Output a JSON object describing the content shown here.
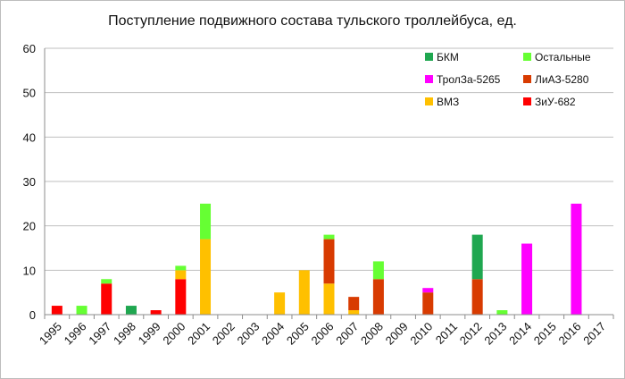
{
  "chart_data": {
    "type": "bar",
    "stacked": true,
    "title": "Поступление подвижного состава тульского троллейбуса, ед.",
    "xlabel": "",
    "ylabel": "",
    "ylim": [
      0,
      60
    ],
    "yticks": [
      0,
      10,
      20,
      30,
      40,
      50,
      60
    ],
    "grid": true,
    "legend_position": "top-right",
    "categories": [
      "1995",
      "1996",
      "1997",
      "1998",
      "1999",
      "2000",
      "2001",
      "2002",
      "2003",
      "2004",
      "2005",
      "2006",
      "2007",
      "2008",
      "2009",
      "2010",
      "2011",
      "2012",
      "2013",
      "2014",
      "2015",
      "2016",
      "2017"
    ],
    "series": [
      {
        "name": "ЗиУ-682",
        "color": "#ff0000",
        "values": [
          2,
          0,
          7,
          0,
          1,
          8,
          0,
          0,
          0,
          0,
          0,
          0,
          0,
          0,
          0,
          0,
          0,
          0,
          0,
          0,
          0,
          0,
          0
        ]
      },
      {
        "name": "ВМЗ",
        "color": "#ffc000",
        "values": [
          0,
          0,
          0,
          0,
          0,
          2,
          17,
          0,
          0,
          5,
          10,
          7,
          1,
          0,
          0,
          0,
          0,
          0,
          0,
          0,
          0,
          0,
          0
        ]
      },
      {
        "name": "ЛиАЗ-5280",
        "color": "#d83b01",
        "values": [
          0,
          0,
          0,
          0,
          0,
          0,
          0,
          0,
          0,
          0,
          0,
          10,
          3,
          8,
          0,
          5,
          0,
          8,
          0,
          0,
          0,
          0,
          0
        ]
      },
      {
        "name": "ТролЗа-5265",
        "color": "#ff00ff",
        "values": [
          0,
          0,
          0,
          0,
          0,
          0,
          0,
          0,
          0,
          0,
          0,
          0,
          0,
          0,
          0,
          1,
          0,
          0,
          0,
          16,
          0,
          25,
          0
        ]
      },
      {
        "name": "БКМ",
        "color": "#1fa750",
        "values": [
          0,
          0,
          0,
          2,
          0,
          0,
          0,
          0,
          0,
          0,
          0,
          0,
          0,
          0,
          0,
          0,
          0,
          10,
          0,
          0,
          0,
          0,
          0
        ]
      },
      {
        "name": "Остальные",
        "color": "#66ff33",
        "values": [
          0,
          2,
          1,
          0,
          0,
          1,
          8,
          0,
          0,
          0,
          0,
          1,
          0,
          4,
          0,
          0,
          0,
          0,
          1,
          0,
          0,
          0,
          0
        ]
      }
    ],
    "legend_order": [
      "БКМ",
      "Остальные",
      "ТролЗа-5265",
      "ЛиАЗ-5280",
      "ВМЗ",
      "ЗиУ-682"
    ],
    "colors": {
      "gridline": "#bfbfbf",
      "axis": "#8c8c8c",
      "text": "#111111"
    }
  }
}
